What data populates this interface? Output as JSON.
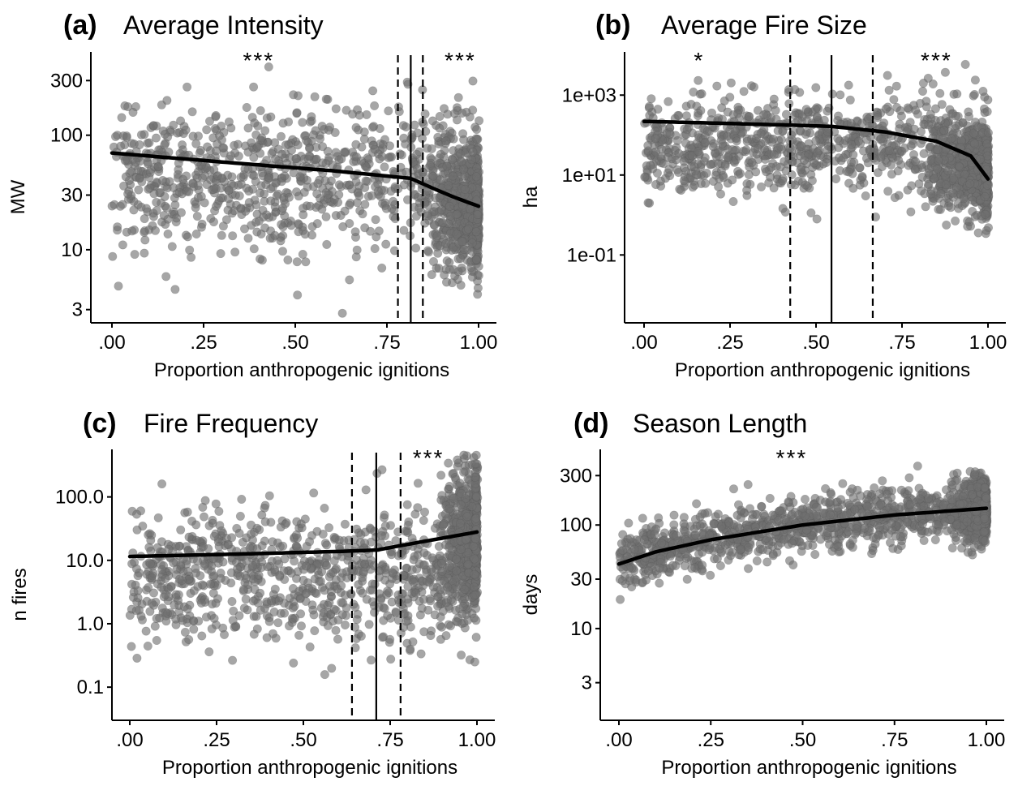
{
  "chart_data": [
    {
      "type": "scatter",
      "panel_label": "(a)",
      "title": "Average Intensity",
      "xlabel": "Proportion anthropogenic ignitions",
      "ylabel": "MW",
      "x_scale": "linear",
      "y_scale": "log",
      "xlim": [
        0,
        1
      ],
      "ylim": [
        2.3,
        500
      ],
      "x_ticks": [
        0,
        0.25,
        0.5,
        0.75,
        1.0
      ],
      "x_tick_labels": [
        ".00",
        ".25",
        ".50",
        ".75",
        "1.00"
      ],
      "y_ticks": [
        3,
        10,
        30,
        100,
        300
      ],
      "y_tick_labels": [
        "3",
        "10",
        "30",
        "100",
        "300"
      ],
      "fit_line": {
        "x": [
          0,
          0.2,
          0.4,
          0.6,
          0.815,
          0.87,
          0.93,
          1.0
        ],
        "y": [
          70,
          62,
          55,
          49,
          42,
          35,
          29,
          24
        ]
      },
      "breakpoint": 0.815,
      "breakpoint_ci": [
        0.78,
        0.848
      ],
      "significance": [
        {
          "x": 0.4,
          "label": "***"
        },
        {
          "x": 0.95,
          "label": "***"
        }
      ],
      "points_model": {
        "count": 1500,
        "dense_from": 0.85,
        "center_y": 45,
        "spread_log10": 0.32,
        "dense_center_y": 22,
        "dense_spread_log10": 0.28,
        "seed": 11
      }
    },
    {
      "type": "scatter",
      "panel_label": "(b)",
      "title": "Average Fire Size",
      "xlabel": "Proportion anthropogenic ignitions",
      "ylabel": "ha",
      "x_scale": "linear",
      "y_scale": "log",
      "xlim": [
        0,
        1
      ],
      "ylim": [
        0.002,
        10000
      ],
      "x_ticks": [
        0,
        0.25,
        0.5,
        0.75,
        1.0
      ],
      "x_tick_labels": [
        ".00",
        ".25",
        ".50",
        ".75",
        "1.00"
      ],
      "y_ticks": [
        0.1,
        10,
        1000
      ],
      "y_tick_labels": [
        "1e-01",
        "1e+01",
        "1e+03"
      ],
      "fit_line": {
        "x": [
          0,
          0.2,
          0.4,
          0.545,
          0.7,
          0.85,
          0.95,
          1.0
        ],
        "y": [
          220,
          200,
          180,
          165,
          120,
          70,
          30,
          8
        ]
      },
      "breakpoint": 0.545,
      "breakpoint_ci": [
        0.425,
        0.665
      ],
      "significance": [
        {
          "x": 0.16,
          "label": "*"
        },
        {
          "x": 0.85,
          "label": "***"
        }
      ],
      "points_model": {
        "count": 1500,
        "dense_from": 0.8,
        "center_y": 60,
        "spread_log10": 0.6,
        "dense_center_y": 12,
        "dense_spread_log10": 0.55,
        "seed": 23
      }
    },
    {
      "type": "scatter",
      "panel_label": "(c)",
      "title": "Fire Frequency",
      "xlabel": "Proportion anthropogenic ignitions",
      "ylabel": "n fires",
      "x_scale": "linear",
      "y_scale": "log",
      "xlim": [
        0,
        1
      ],
      "ylim": [
        0.03,
        500
      ],
      "x_ticks": [
        0,
        0.25,
        0.5,
        0.75,
        1.0
      ],
      "x_tick_labels": [
        ".00",
        ".25",
        ".50",
        ".75",
        "1.00"
      ],
      "y_ticks": [
        0.1,
        1,
        10,
        100
      ],
      "y_tick_labels": [
        "0.1",
        "1.0",
        "10.0",
        "100.0"
      ],
      "fit_line": {
        "x": [
          0,
          0.3,
          0.6,
          0.71,
          0.85,
          1.0
        ],
        "y": [
          11.5,
          12.5,
          13.8,
          14.5,
          20,
          28
        ]
      },
      "breakpoint": 0.71,
      "breakpoint_ci": [
        0.64,
        0.78
      ],
      "significance": [
        {
          "x": 0.86,
          "label": "***"
        }
      ],
      "points_model": {
        "count": 1500,
        "dense_from": 0.88,
        "center_y": 6,
        "spread_log10": 0.55,
        "dense_center_y": 25,
        "dense_spread_log10": 0.55,
        "seed": 37
      }
    },
    {
      "type": "scatter",
      "panel_label": "(d)",
      "title": "Season Length",
      "xlabel": "Proportion anthropogenic ignitions",
      "ylabel": "days",
      "x_scale": "linear",
      "y_scale": "log",
      "xlim": [
        0,
        1
      ],
      "ylim": [
        1.3,
        500
      ],
      "x_ticks": [
        0,
        0.25,
        0.5,
        0.75,
        1.0
      ],
      "x_tick_labels": [
        ".00",
        ".25",
        ".50",
        ".75",
        "1.00"
      ],
      "y_ticks": [
        3,
        10,
        30,
        100,
        300
      ],
      "y_tick_labels": [
        "3",
        "10",
        "30",
        "100",
        "300"
      ],
      "fit_line": {
        "x": [
          0,
          0.1,
          0.25,
          0.5,
          0.75,
          1.0
        ],
        "y": [
          42,
          55,
          72,
          100,
          125,
          145
        ]
      },
      "breakpoint": null,
      "breakpoint_ci": null,
      "significance": [
        {
          "x": 0.47,
          "label": "***"
        }
      ],
      "points_model": {
        "count": 1700,
        "dense_from": 0.9,
        "center_y": 100,
        "spread_log10": 0.14,
        "dense_center_y": 140,
        "dense_spread_log10": 0.16,
        "follow_fit": true,
        "seed": 53
      }
    }
  ]
}
